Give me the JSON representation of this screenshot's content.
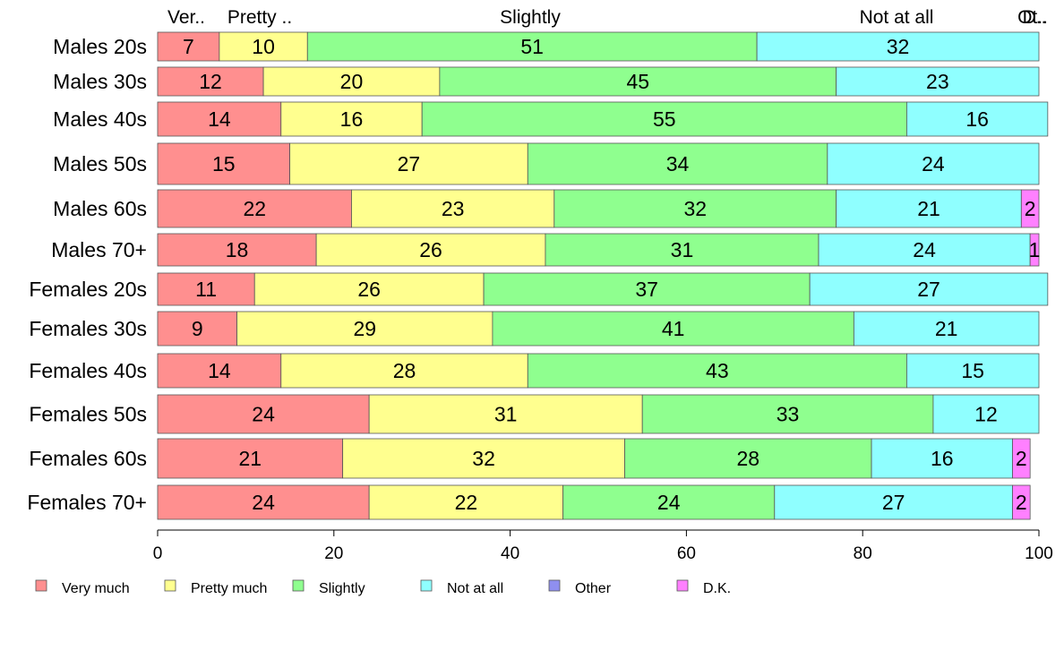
{
  "chart_data": {
    "type": "bar",
    "orientation": "horizontal",
    "stacked": true,
    "categories": [
      "Males 20s",
      "Males 30s",
      "Males 40s",
      "Males 50s",
      "Males 60s",
      "Males 70+",
      "Females 20s",
      "Females 30s",
      "Females 40s",
      "Females 50s",
      "Females 60s",
      "Females 70+"
    ],
    "top_labels": [
      "Ver..",
      "Pretty ..",
      "Slightly",
      "Not at all",
      "Ot..",
      "D.."
    ],
    "series": [
      {
        "name": "Very much",
        "color": "#ff8f8f",
        "values": [
          7,
          12,
          14,
          15,
          22,
          18,
          11,
          9,
          14,
          24,
          21,
          24
        ]
      },
      {
        "name": "Pretty much",
        "color": "#ffff8f",
        "values": [
          10,
          20,
          16,
          27,
          23,
          26,
          26,
          29,
          28,
          31,
          32,
          22
        ]
      },
      {
        "name": "Slightly",
        "color": "#8fff8f",
        "values": [
          51,
          45,
          55,
          34,
          32,
          31,
          37,
          41,
          43,
          33,
          28,
          24
        ]
      },
      {
        "name": "Not at all",
        "color": "#8fffff",
        "values": [
          32,
          23,
          16,
          24,
          21,
          24,
          27,
          21,
          15,
          12,
          16,
          27
        ]
      },
      {
        "name": "Other",
        "color": "#8f8fef",
        "values": [
          0,
          0,
          0,
          0,
          0,
          0,
          0,
          0,
          0,
          0,
          0,
          0
        ]
      },
      {
        "name": "D.K.",
        "color": "#ff80ff",
        "values": [
          0,
          0,
          0,
          0,
          2,
          1,
          0,
          0,
          0,
          0,
          2,
          2
        ]
      }
    ],
    "xlim": [
      0,
      100
    ],
    "xticks": [
      0,
      20,
      40,
      60,
      80,
      100
    ],
    "legend_position": "bottom",
    "title": "",
    "xlabel": "",
    "ylabel": ""
  }
}
